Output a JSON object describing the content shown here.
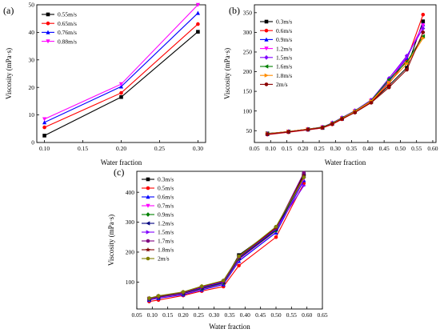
{
  "chart_data": [
    {
      "panel_label": "(a)",
      "type": "line",
      "xlabel": "Water fraction",
      "ylabel": "Viscosity (mPa·s)",
      "xlim": [
        0.09,
        0.31
      ],
      "ylim": [
        0,
        50
      ],
      "xticks": [
        0.1,
        0.15,
        0.2,
        0.25,
        0.3
      ],
      "xtick_labels": [
        "0.10",
        "0.15",
        "0.20",
        "0.25",
        "0.30"
      ],
      "yticks": [
        0,
        10,
        20,
        30,
        40,
        50
      ],
      "ytick_labels": [
        "0",
        "10",
        "20",
        "30",
        "40",
        "50"
      ],
      "legend_position": "top-left",
      "x": [
        0.1,
        0.2,
        0.3
      ],
      "series": [
        {
          "name": "0.55m/s",
          "color": "#000000",
          "marker": "square",
          "values": [
            2.5,
            16.5,
            40.2
          ]
        },
        {
          "name": "0.65m/s",
          "color": "#ff0000",
          "marker": "circle",
          "values": [
            5.5,
            18.0,
            43.0
          ]
        },
        {
          "name": "0.76m/s",
          "color": "#0000ff",
          "marker": "triangle-up",
          "values": [
            7.3,
            20.3,
            47.0
          ]
        },
        {
          "name": "0.88m/s",
          "color": "#ff00ff",
          "marker": "triangle-down",
          "values": [
            8.5,
            21.2,
            50.0
          ]
        }
      ]
    },
    {
      "panel_label": "(b)",
      "type": "line",
      "xlabel": "Water fraction",
      "ylabel": "Viscosity (mPa·s)",
      "xlim": [
        0.05,
        0.61
      ],
      "ylim": [
        20,
        370
      ],
      "xticks": [
        0.05,
        0.1,
        0.15,
        0.2,
        0.25,
        0.3,
        0.35,
        0.4,
        0.45,
        0.5,
        0.55,
        0.6
      ],
      "xtick_labels": [
        "0.05",
        "0.10",
        "0.15",
        "0.20",
        "0.25",
        "0.30",
        "0.35",
        "0.40",
        "0.45",
        "0.50",
        "0.55",
        "0.60"
      ],
      "yticks": [
        50,
        100,
        150,
        200,
        250,
        300,
        350
      ],
      "ytick_labels": [
        "50",
        "100",
        "150",
        "200",
        "250",
        "300",
        "350"
      ],
      "legend_position": "top-left",
      "x": [
        0.09,
        0.155,
        0.215,
        0.26,
        0.29,
        0.32,
        0.36,
        0.41,
        0.465,
        0.52,
        0.57
      ],
      "series": [
        {
          "name": "0.3m/s",
          "color": "#000000",
          "marker": "square",
          "values": [
            43,
            47,
            53,
            57,
            68,
            80,
            98,
            123,
            165,
            210,
            328
          ]
        },
        {
          "name": "0.6m/s",
          "color": "#ff0000",
          "marker": "circle",
          "values": [
            40,
            46,
            52,
            57,
            66,
            79,
            97,
            123,
            170,
            230,
            345
          ]
        },
        {
          "name": "0.9m/s",
          "color": "#0000ff",
          "marker": "triangle-up",
          "values": [
            41,
            47,
            53,
            58,
            68,
            81,
            99,
            125,
            175,
            235,
            320
          ]
        },
        {
          "name": "1.2m/s",
          "color": "#ff00ff",
          "marker": "triangle-down",
          "values": [
            41,
            48,
            54,
            59,
            69,
            82,
            100,
            127,
            178,
            238,
            318
          ]
        },
        {
          "name": "1.5m/s",
          "color": "#8000ff",
          "marker": "diamond",
          "values": [
            42,
            48,
            54,
            59,
            70,
            83,
            101,
            128,
            183,
            240,
            310
          ]
        },
        {
          "name": "1.6m/s",
          "color": "#008000",
          "marker": "triangle-left",
          "values": [
            42,
            48,
            54,
            59,
            69,
            82,
            100,
            126,
            180,
            225,
            290
          ]
        },
        {
          "name": "1.8m/s",
          "color": "#ff8c00",
          "marker": "triangle-right",
          "values": [
            42,
            48,
            54,
            58,
            68,
            81,
            99,
            125,
            172,
            220,
            285
          ]
        },
        {
          "name": "2m/s",
          "color": "#8b0000",
          "marker": "circle",
          "values": [
            41,
            47,
            53,
            58,
            67,
            80,
            96,
            121,
            160,
            205,
            300
          ]
        }
      ]
    },
    {
      "panel_label": "(c)",
      "type": "line",
      "xlabel": "Water fraction",
      "ylabel": "Viscosity (mPa·s)",
      "xlim": [
        0.05,
        0.65
      ],
      "ylim": [
        10,
        470
      ],
      "xticks": [
        0.05,
        0.1,
        0.15,
        0.2,
        0.25,
        0.3,
        0.35,
        0.4,
        0.45,
        0.5,
        0.55,
        0.6,
        0.65
      ],
      "xtick_labels": [
        "0.05",
        "0.10",
        "0.15",
        "0.20",
        "0.25",
        "0.30",
        "0.35",
        "0.40",
        "0.45",
        "0.50",
        "0.55",
        "0.60",
        "0.65"
      ],
      "yticks": [
        100,
        200,
        300,
        400
      ],
      "ytick_labels": [
        "100",
        "200",
        "300",
        "400"
      ],
      "legend_position": "top-left",
      "x": [
        0.09,
        0.12,
        0.2,
        0.26,
        0.33,
        0.38,
        0.5,
        0.59
      ],
      "series": [
        {
          "name": "0.3m/s",
          "color": "#000000",
          "marker": "square",
          "values": [
            40,
            48,
            60,
            80,
            100,
            190,
            280,
            460
          ]
        },
        {
          "name": "0.5m/s",
          "color": "#ff0000",
          "marker": "circle",
          "values": [
            35,
            40,
            55,
            70,
            85,
            155,
            250,
            430
          ]
        },
        {
          "name": "0.6m/s",
          "color": "#0000ff",
          "marker": "triangle-up",
          "values": [
            40,
            46,
            58,
            74,
            92,
            170,
            265,
            440
          ]
        },
        {
          "name": "0.7m/s",
          "color": "#ff00ff",
          "marker": "triangle-down",
          "values": [
            41,
            48,
            60,
            76,
            95,
            175,
            270,
            445
          ]
        },
        {
          "name": "0.9m/s",
          "color": "#008000",
          "marker": "diamond",
          "values": [
            43,
            50,
            62,
            78,
            97,
            178,
            272,
            450
          ]
        },
        {
          "name": "1.2m/s",
          "color": "#000080",
          "marker": "triangle-left",
          "values": [
            44,
            51,
            63,
            80,
            99,
            180,
            275,
            455
          ]
        },
        {
          "name": "1.5m/s",
          "color": "#8000ff",
          "marker": "triangle-right",
          "values": [
            45,
            52,
            64,
            82,
            101,
            182,
            278,
            422
          ]
        },
        {
          "name": "1.7m/s",
          "color": "#800080",
          "marker": "circle",
          "values": [
            45,
            52,
            65,
            84,
            103,
            183,
            280,
            465
          ]
        },
        {
          "name": "1.8m/s",
          "color": "#800000",
          "marker": "star",
          "values": [
            46,
            53,
            66,
            85,
            104,
            185,
            282,
            455
          ]
        },
        {
          "name": "2m/s",
          "color": "#808000",
          "marker": "circle",
          "values": [
            46,
            54,
            67,
            86,
            105,
            186,
            285,
            450
          ]
        }
      ]
    }
  ]
}
